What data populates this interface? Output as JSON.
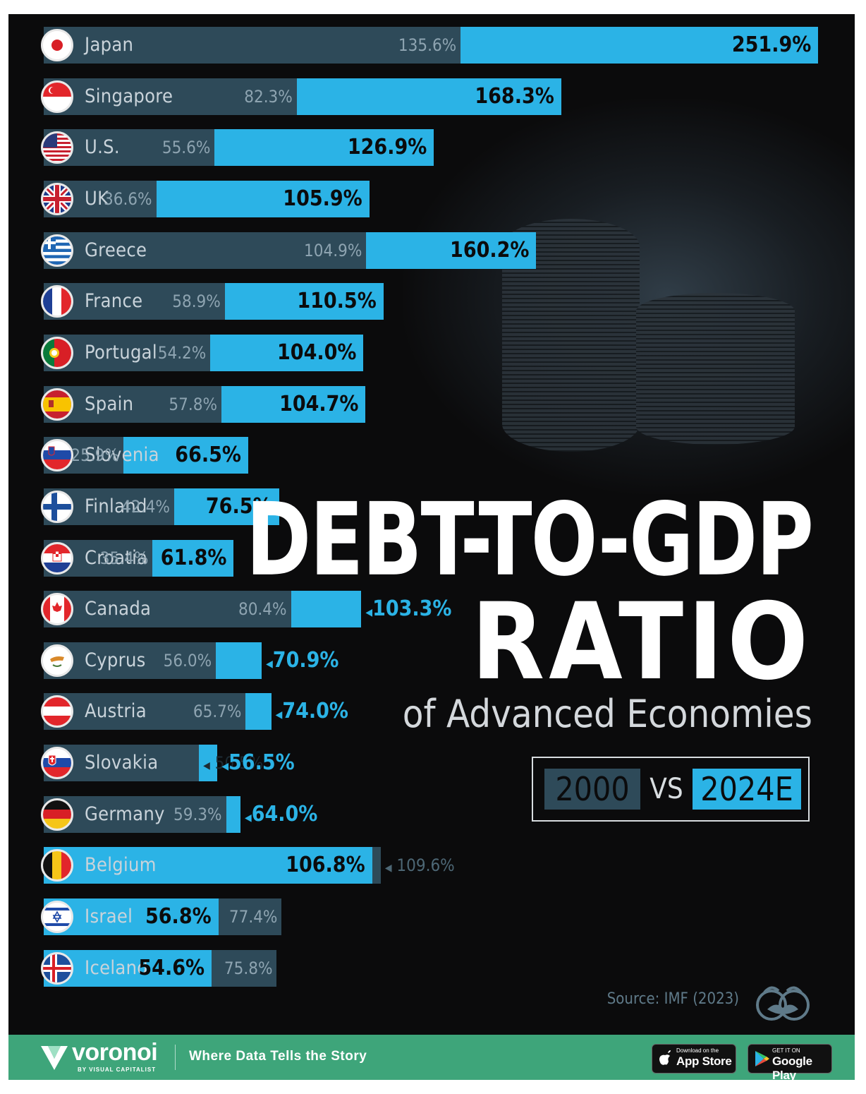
{
  "title_line1": "DEBT-TO-GDP",
  "title_line2": "RATIO",
  "subtitle": "of Advanced Economies",
  "legend": {
    "year_a": "2000",
    "vs": "VS",
    "year_b": "2024E"
  },
  "source": "Source: IMF (2023)",
  "footer": {
    "brand": "voronoi",
    "brand_sub": "BY VISUAL CAPITALIST",
    "tagline": "Where Data Tells the Story",
    "app_store_small": "Download on the",
    "app_store_big": "App Store",
    "google_small": "GET IT ON",
    "google_big": "Google Play"
  },
  "colors": {
    "bar_2000": "#2e4a59",
    "bar_2024": "#2bb3e6",
    "background": "#0b0b0c",
    "footer": "#3ea57a"
  },
  "chart_data": {
    "type": "bar",
    "orientation": "horizontal",
    "title": "DEBT-TO-GDP RATIO",
    "subtitle": "of Advanced Economies",
    "series_names": [
      "2000",
      "2024E"
    ],
    "categories": [
      "Japan",
      "Singapore",
      "U.S.",
      "UK",
      "Greece",
      "France",
      "Portugal",
      "Spain",
      "Slovenia",
      "Finland",
      "Croatia",
      "Canada",
      "Cyprus",
      "Austria",
      "Slovakia",
      "Germany",
      "Belgium",
      "Israel",
      "Iceland"
    ],
    "flags": [
      "japan-flag",
      "singapore-flag",
      "us-flag",
      "uk-flag",
      "greece-flag",
      "france-flag",
      "portugal-flag",
      "spain-flag",
      "slovenia-flag",
      "finland-flag",
      "croatia-flag",
      "canada-flag",
      "cyprus-flag",
      "austria-flag",
      "slovakia-flag",
      "germany-flag",
      "belgium-flag",
      "israel-flag",
      "iceland-flag"
    ],
    "series": [
      {
        "name": "2000",
        "values": [
          135.6,
          82.3,
          55.6,
          36.6,
          104.9,
          58.9,
          54.2,
          57.8,
          25.9,
          42.4,
          35.4,
          80.4,
          56.0,
          65.7,
          50.5,
          59.3,
          109.6,
          77.4,
          75.8
        ]
      },
      {
        "name": "2024E",
        "values": [
          251.9,
          168.3,
          126.9,
          105.9,
          160.2,
          110.5,
          104.0,
          104.7,
          66.5,
          76.5,
          61.8,
          103.3,
          70.9,
          74.0,
          56.5,
          64.0,
          106.8,
          56.8,
          54.6
        ]
      }
    ],
    "labels_2000": [
      "135.6%",
      "82.3%",
      "55.6%",
      "36.6%",
      "104.9%",
      "58.9%",
      "54.2%",
      "57.8%",
      "25.9%",
      "42.4%",
      "35.4%",
      "80.4%",
      "56.0%",
      "65.7%",
      "50.5%",
      "59.3%",
      "109.6%",
      "77.4%",
      "75.8%"
    ],
    "labels_2024": [
      "251.9%",
      "168.3%",
      "126.9%",
      "105.9%",
      "160.2%",
      "110.5%",
      "104.0%",
      "104.7%",
      "66.5%",
      "76.5%",
      "61.8%",
      "103.3%",
      "70.9%",
      "74.0%",
      "56.5%",
      "64.0%",
      "106.8%",
      "56.8%",
      "54.6%"
    ]
  }
}
